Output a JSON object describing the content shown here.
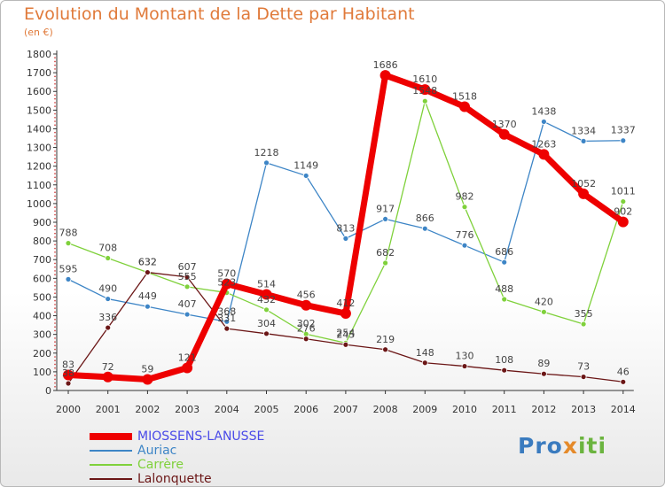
{
  "title": "Evolution du Montant de la Dette par Habitant",
  "subtitle": "(en €)",
  "logo": {
    "text": "Proxiti",
    "part1": "Pro",
    "part2": "x",
    "part3": "iti"
  },
  "chart_data": {
    "type": "line",
    "title": "Evolution du Montant de la Dette par Habitant",
    "subtitle": "(en €)",
    "xlabel": "",
    "ylabel": "",
    "ylim": [
      0,
      1800
    ],
    "yticks": [
      0,
      100,
      200,
      300,
      400,
      500,
      600,
      700,
      800,
      900,
      1000,
      1100,
      1200,
      1300,
      1400,
      1500,
      1600,
      1700,
      1800
    ],
    "categories": [
      "2000",
      "2001",
      "2002",
      "2003",
      "2004",
      "2005",
      "2006",
      "2007",
      "2008",
      "2009",
      "2010",
      "2011",
      "2012",
      "2013",
      "2014"
    ],
    "grid": false,
    "legend_position": "bottom-left",
    "series": [
      {
        "name": "MIOSSENS-LANUSSE",
        "color": "#ee0000",
        "emphasis": true,
        "values": [
          83,
          72,
          59,
          121,
          570,
          514,
          456,
          412,
          1686,
          1610,
          1518,
          1370,
          1263,
          1052,
          902
        ],
        "labels": [
          "83",
          "72",
          "59",
          "121",
          "570",
          "514",
          "456",
          "412",
          "1686",
          "1610",
          "1518",
          "1370",
          "1263",
          "1052",
          "902"
        ]
      },
      {
        "name": "Auriac",
        "color": "#3d85c6",
        "values": [
          595,
          490,
          449,
          407,
          368,
          1218,
          1149,
          813,
          917,
          866,
          776,
          686,
          1438,
          1334,
          1337
        ],
        "labels": [
          "595",
          "490",
          "449",
          "407",
          "368",
          "1218",
          "1149",
          "813",
          "917",
          "866",
          "776",
          "686",
          "1438",
          "1334",
          "1337"
        ]
      },
      {
        "name": "Carrère",
        "color": "#7fd13b",
        "values": [
          788,
          708,
          632,
          555,
          523,
          432,
          302,
          254,
          682,
          1548,
          982,
          488,
          420,
          355,
          1011
        ],
        "labels": [
          "788",
          "708",
          "632",
          "555",
          "523",
          "432",
          "302",
          "254",
          "682",
          "1548",
          "982",
          "488",
          "420",
          "355",
          "1011"
        ]
      },
      {
        "name": "Lalonquette",
        "color": "#6b1616",
        "values": [
          38,
          336,
          632,
          607,
          331,
          304,
          276,
          245,
          219,
          148,
          130,
          108,
          89,
          73,
          46
        ],
        "labels": [
          "38",
          "336",
          "632",
          "607",
          "331",
          "304",
          "276",
          "245",
          "219",
          "148",
          "130",
          "108",
          "89",
          "73",
          "46"
        ]
      }
    ]
  }
}
